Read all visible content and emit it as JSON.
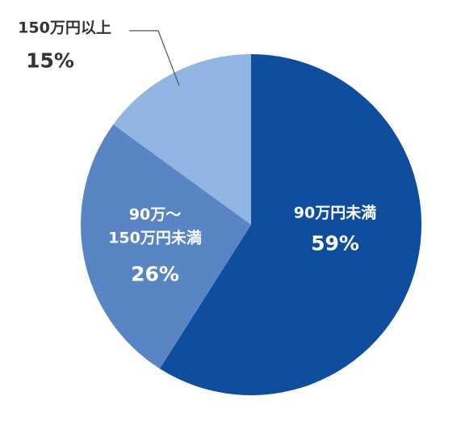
{
  "chart_data": {
    "type": "pie",
    "categories": [
      "90万円未満",
      "90万～\n150万円未満",
      "150万円以上"
    ],
    "values": [
      59,
      26,
      15
    ],
    "value_labels": [
      "59%",
      "26%",
      "15%"
    ],
    "colors": [
      "#0f4e9f",
      "#5a85c5",
      "#91b6e3"
    ]
  }
}
